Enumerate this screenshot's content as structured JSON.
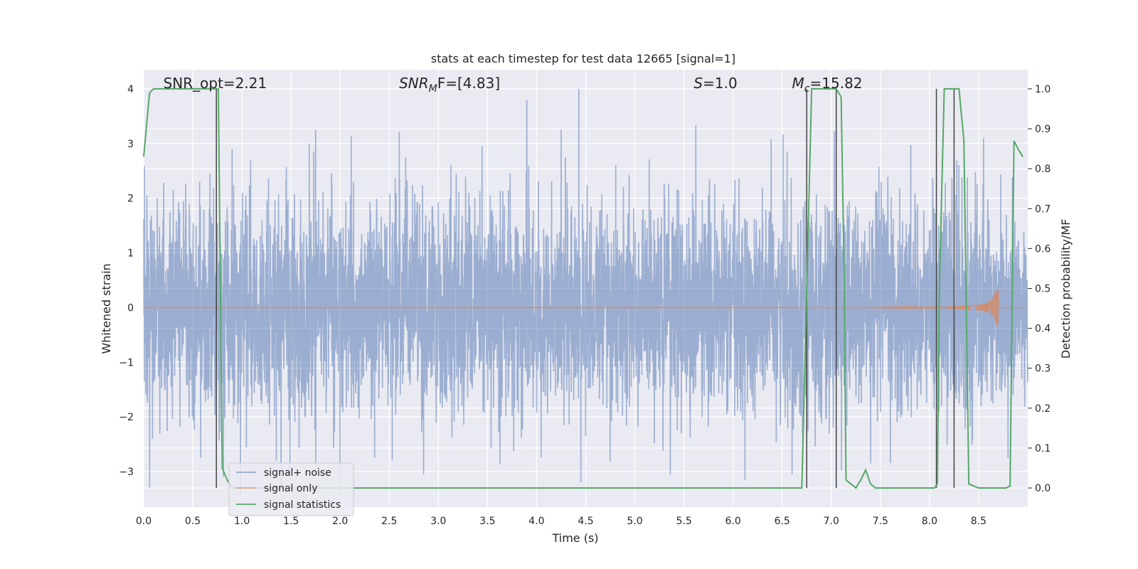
{
  "chart_data": {
    "type": "line",
    "title": "stats at each timestep for test data 12665 [signal=1]",
    "xlabel": "Time (s)",
    "ylabel": "Whitened strain",
    "y2label": "Detection probability/MF",
    "xlim": [
      0.0,
      9.0
    ],
    "ylim": [
      -3.65,
      4.35
    ],
    "y2lim": [
      -0.048,
      1.048
    ],
    "xticks": [
      0.0,
      0.5,
      1.0,
      1.5,
      2.0,
      2.5,
      3.0,
      3.5,
      4.0,
      4.5,
      5.0,
      5.5,
      6.0,
      6.5,
      7.0,
      7.5,
      8.0,
      8.5
    ],
    "xtick_labels": [
      "0.0",
      "0.5",
      "1.0",
      "1.5",
      "2.0",
      "2.5",
      "3.0",
      "3.5",
      "4.0",
      "4.5",
      "5.0",
      "5.5",
      "6.0",
      "6.5",
      "7.0",
      "7.5",
      "8.0",
      "8.5"
    ],
    "yticks": [
      -3,
      -2,
      -1,
      0,
      1,
      2,
      3,
      4
    ],
    "ytick_labels": [
      "−3",
      "−2",
      "−1",
      "0",
      "1",
      "2",
      "3",
      "4"
    ],
    "y2ticks": [
      0.0,
      0.1,
      0.2,
      0.3,
      0.4,
      0.5,
      0.6,
      0.7,
      0.8,
      0.9,
      1.0
    ],
    "y2tick_labels": [
      "0.0",
      "0.1",
      "0.2",
      "0.3",
      "0.4",
      "0.5",
      "0.6",
      "0.7",
      "0.8",
      "0.9",
      "1.0"
    ],
    "grid": true,
    "legend_position": "bottom-left",
    "annotations": [
      {
        "text": "SNR_opt=2.21",
        "x": 0.2
      },
      {
        "text": "SNR",
        "sub": "M",
        "rest": "F=[4.83]",
        "x": 2.6,
        "italic": true
      },
      {
        "text": "S",
        "rest": "=1.0",
        "x": 5.6,
        "italic": true
      },
      {
        "text": "M",
        "sub": "c",
        "rest": "=15.82",
        "x": 6.6,
        "italic": true
      }
    ],
    "series": [
      {
        "name": "signal+ noise",
        "color": "#4c72b0",
        "axis": "left",
        "kind": "noise",
        "t_start": 0.0,
        "t_end": 9.0,
        "sample_rate_hz": 2048,
        "envelope_percentile_95": 1.8,
        "noteworthy_peaks": [
          {
            "x": 0.06,
            "y": -3.3
          },
          {
            "x": 0.09,
            "y": -2.4
          },
          {
            "x": 0.58,
            "y": -2.75
          },
          {
            "x": 0.9,
            "y": 2.9
          },
          {
            "x": 1.35,
            "y": -2.8
          },
          {
            "x": 1.75,
            "y": 3.25
          },
          {
            "x": 2.35,
            "y": -2.75
          },
          {
            "x": 2.85,
            "y": -3.05
          },
          {
            "x": 3.9,
            "y": 3.8
          },
          {
            "x": 4.25,
            "y": 3.25
          },
          {
            "x": 4.43,
            "y": 4.0
          },
          {
            "x": 4.45,
            "y": -3.2
          },
          {
            "x": 6.55,
            "y": 2.85
          },
          {
            "x": 6.6,
            "y": -3.05
          },
          {
            "x": 7.4,
            "y": -2.85
          },
          {
            "x": 8.55,
            "y": 3.1
          },
          {
            "x": 8.8,
            "y": -2.75
          }
        ]
      },
      {
        "name": "signal only",
        "color": "#dd8452",
        "axis": "left",
        "kind": "chirp",
        "merger_time": 8.7,
        "amplitude_at_merger": 0.35
      },
      {
        "name": "signal statistics",
        "color": "#55a868",
        "axis": "right",
        "kind": "line",
        "x": [
          0.0,
          0.06,
          0.1,
          0.15,
          0.2,
          0.3,
          0.4,
          0.5,
          0.6,
          0.7,
          0.74,
          0.76,
          0.8,
          0.85,
          0.9,
          1.0,
          2.0,
          3.0,
          4.0,
          5.0,
          6.0,
          6.5,
          6.7,
          6.75,
          6.8,
          6.85,
          6.95,
          7.05,
          7.1,
          7.13,
          7.15,
          7.2,
          7.25,
          7.3,
          7.35,
          7.4,
          7.45,
          7.5,
          7.6,
          7.8,
          8.0,
          8.05,
          8.08,
          8.1,
          8.15,
          8.2,
          8.25,
          8.3,
          8.35,
          8.4,
          8.5,
          8.6,
          8.7,
          8.78,
          8.82,
          8.86,
          8.9,
          8.95
        ],
        "y": [
          0.83,
          0.99,
          1.0,
          1.0,
          1.0,
          1.0,
          1.0,
          1.0,
          1.0,
          1.0,
          1.0,
          1.0,
          0.05,
          0.02,
          0.0,
          0.0,
          0.0,
          0.0,
          0.0,
          0.0,
          0.0,
          0.0,
          0.0,
          0.5,
          1.0,
          1.0,
          1.0,
          1.0,
          0.98,
          0.55,
          0.02,
          0.01,
          0.0,
          0.02,
          0.045,
          0.01,
          0.0,
          0.0,
          0.0,
          0.0,
          0.0,
          0.0,
          0.01,
          0.5,
          1.0,
          1.0,
          1.0,
          1.0,
          0.87,
          0.01,
          0.0,
          0.0,
          0.0,
          0.0,
          0.005,
          0.87,
          0.85,
          0.83
        ]
      }
    ],
    "vertical_markers": {
      "color": "#444444",
      "axis_range": [
        0.0,
        1.0
      ],
      "x": [
        0.74,
        6.75,
        7.05,
        8.07,
        8.25
      ]
    }
  }
}
